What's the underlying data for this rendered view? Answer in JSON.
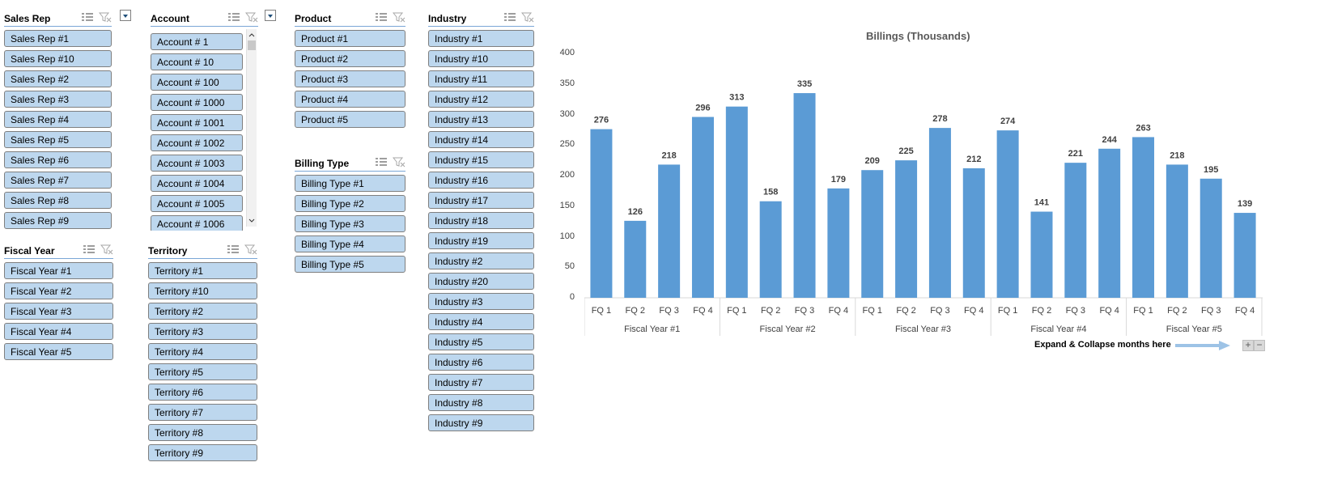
{
  "slicers": {
    "sales_rep": {
      "title": "Sales Rep",
      "items": [
        "Sales Rep #1",
        "Sales Rep #10",
        "Sales Rep #2",
        "Sales Rep #3",
        "Sales Rep #4",
        "Sales Rep #5",
        "Sales Rep #6",
        "Sales Rep #7",
        "Sales Rep #8",
        "Sales Rep #9"
      ]
    },
    "account": {
      "title": "Account",
      "items": [
        "Account # 1",
        "Account # 10",
        "Account # 100",
        "Account # 1000",
        "Account # 1001",
        "Account # 1002",
        "Account # 1003",
        "Account # 1004",
        "Account # 1005",
        "Account # 1006"
      ]
    },
    "product": {
      "title": "Product",
      "items": [
        "Product #1",
        "Product #2",
        "Product #3",
        "Product #4",
        "Product #5"
      ]
    },
    "industry": {
      "title": "Industry",
      "items": [
        "Industry #1",
        "Industry #10",
        "Industry #11",
        "Industry #12",
        "Industry #13",
        "Industry #14",
        "Industry #15",
        "Industry #16",
        "Industry #17",
        "Industry #18",
        "Industry #19",
        "Industry #2",
        "Industry #20",
        "Industry #3",
        "Industry #4",
        "Industry #5",
        "Industry #6",
        "Industry #7",
        "Industry #8",
        "Industry #9"
      ]
    },
    "fiscal_year": {
      "title": "Fiscal Year",
      "items": [
        "Fiscal Year #1",
        "Fiscal Year #2",
        "Fiscal Year #3",
        "Fiscal Year #4",
        "Fiscal Year #5"
      ]
    },
    "territory": {
      "title": "Territory",
      "items": [
        "Territory #1",
        "Territory #10",
        "Territory #2",
        "Territory #3",
        "Territory #4",
        "Territory #5",
        "Territory #6",
        "Territory #7",
        "Territory #8",
        "Territory #9"
      ]
    },
    "billing_type": {
      "title": "Billing Type",
      "items": [
        "Billing Type #1",
        "Billing Type #2",
        "Billing Type #3",
        "Billing Type #4",
        "Billing Type #5"
      ]
    }
  },
  "icons": {
    "multi_select": "multi-select-icon",
    "clear_filter": "clear-filter-icon",
    "dropdown": "dropdown-icon"
  },
  "colors": {
    "slicer_item_bg": "#bdd7ee",
    "bar": "#5b9bd5",
    "header_line": "#7aa6d6"
  },
  "note": {
    "text": "Expand & Collapse months here"
  },
  "chart_data": {
    "type": "bar",
    "title": "Billings (Thousands)",
    "groups": [
      "Fiscal Year #1",
      "Fiscal Year #2",
      "Fiscal Year #3",
      "Fiscal Year #4",
      "Fiscal Year #5"
    ],
    "categories": [
      "FQ 1",
      "FQ 2",
      "FQ 3",
      "FQ 4",
      "FQ 1",
      "FQ 2",
      "FQ 3",
      "FQ 4",
      "FQ 1",
      "FQ 2",
      "FQ 3",
      "FQ 4",
      "FQ 1",
      "FQ 2",
      "FQ 3",
      "FQ 4",
      "FQ 1",
      "FQ 2",
      "FQ 3",
      "FQ 4"
    ],
    "values": [
      276,
      126,
      218,
      296,
      313,
      158,
      335,
      179,
      209,
      225,
      278,
      212,
      274,
      141,
      221,
      244,
      263,
      218,
      195,
      139
    ],
    "yticks": [
      0,
      50,
      100,
      150,
      200,
      250,
      300,
      350,
      400
    ],
    "ylim": [
      0,
      400
    ],
    "grid": false,
    "legend": "none"
  }
}
